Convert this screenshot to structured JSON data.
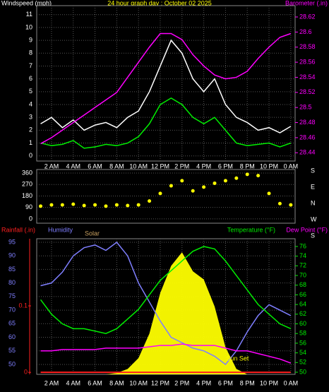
{
  "chart_data": [
    {
      "type": "line",
      "title": "24 hour graph day : October 02 2025",
      "ylabel": "Windspeed (mph)",
      "y2label": "Barometer (.in)",
      "x": [
        1,
        2,
        3,
        4,
        5,
        6,
        7,
        8,
        9,
        10,
        11,
        12,
        13,
        14,
        15,
        16,
        17,
        18,
        19,
        20,
        21,
        22,
        23,
        24
      ],
      "xlim": [
        0.64,
        24.4
      ],
      "xticks": [
        {
          "value": 2,
          "label": "2 AM"
        },
        {
          "value": 4,
          "label": "4 AM"
        },
        {
          "value": 6,
          "label": "6 AM"
        },
        {
          "value": 8,
          "label": "8 AM"
        },
        {
          "value": 10,
          "label": "10 AM"
        },
        {
          "value": 12,
          "label": "12 PM"
        },
        {
          "value": 14,
          "label": "2 PM"
        },
        {
          "value": 16,
          "label": "4 PM"
        },
        {
          "value": 18,
          "label": "6 PM"
        },
        {
          "value": 20,
          "label": "8 PM"
        },
        {
          "value": 22,
          "label": "10 PM"
        },
        {
          "value": 24,
          "label": "0 AM"
        }
      ],
      "ylim": [
        -0.4,
        11.7
      ],
      "yticks": [
        0,
        1,
        2,
        3,
        4,
        5,
        6,
        7,
        8,
        9,
        10,
        11
      ],
      "y2lim": [
        28.429,
        28.635
      ],
      "y2ticks": [
        28.44,
        28.46,
        28.48,
        28.5,
        28.52,
        28.54,
        28.56,
        28.58,
        28.6,
        28.62
      ],
      "grid": true,
      "series": [
        {
          "color": "#ffffff",
          "values": [
            2.5,
            3,
            2.2,
            2.8,
            2,
            2.4,
            2.6,
            2.2,
            3,
            3.5,
            5,
            7,
            9,
            8,
            6,
            5,
            6,
            4,
            3,
            2.6,
            2,
            2.2,
            1.8,
            2.3
          ]
        },
        {
          "color": "#00ee00",
          "values": [
            1,
            0.8,
            0.9,
            1.2,
            0.6,
            0.7,
            0.9,
            0.8,
            1,
            1.5,
            2.5,
            4,
            4.5,
            4,
            3,
            2.5,
            3,
            2,
            1,
            0.8,
            0.9,
            1,
            0.7,
            1
          ]
        },
        {
          "color": "#ff00ff",
          "axis": "y2",
          "values": [
            28.452,
            28.46,
            28.47,
            28.48,
            28.49,
            28.5,
            28.51,
            28.52,
            28.54,
            28.56,
            28.58,
            28.598,
            28.598,
            28.59,
            28.57,
            28.555,
            28.543,
            28.538,
            28.54,
            28.548,
            28.565,
            28.58,
            28.593,
            28.598
          ]
        }
      ]
    },
    {
      "type": "scatter",
      "x": [
        1,
        2,
        3,
        4,
        5,
        6,
        7,
        8,
        9,
        10,
        11,
        12,
        13,
        14,
        15,
        16,
        17,
        18,
        19,
        20,
        21,
        22,
        23,
        24
      ],
      "values": [
        100,
        110,
        110,
        115,
        105,
        110,
        100,
        110,
        105,
        110,
        140,
        200,
        260,
        300,
        220,
        250,
        280,
        300,
        320,
        350,
        340,
        200,
        120,
        110
      ],
      "color": "#ffff00",
      "xlim": [
        0.64,
        24.4
      ],
      "ylim": [
        -34,
        388
      ],
      "yticks": [
        0,
        90,
        180,
        270,
        360
      ],
      "direction_labels": [
        "S",
        "E",
        "N",
        "W",
        "S"
      ],
      "grid": true
    },
    {
      "type": "line",
      "x": [
        1,
        2,
        3,
        4,
        5,
        6,
        7,
        8,
        9,
        10,
        11,
        12,
        13,
        14,
        15,
        16,
        17,
        18,
        19,
        20,
        21,
        22,
        23,
        24
      ],
      "xlim": [
        0.64,
        24.4
      ],
      "xticks": [
        {
          "value": 2,
          "label": "2 AM"
        },
        {
          "value": 4,
          "label": "4 AM"
        },
        {
          "value": 6,
          "label": "6 AM"
        },
        {
          "value": 8,
          "label": "8 AM"
        },
        {
          "value": 10,
          "label": "10 AM"
        },
        {
          "value": 12,
          "label": "12 PM"
        },
        {
          "value": 14,
          "label": "2 PM"
        },
        {
          "value": 16,
          "label": "4 PM"
        },
        {
          "value": 18,
          "label": "6 PM"
        },
        {
          "value": 20,
          "label": "8 PM"
        },
        {
          "value": 22,
          "label": "10 PM"
        },
        {
          "value": 24,
          "label": "0 AM"
        }
      ],
      "ylim": [
        46.35,
        96.3
      ],
      "yticks": [
        50,
        55,
        60,
        65,
        70,
        75,
        80,
        85,
        90,
        95
      ],
      "y2lim": [
        49.56,
        77.6
      ],
      "y2ticks": [
        50,
        52,
        54,
        56,
        58,
        60,
        62,
        64,
        66,
        68,
        70,
        72,
        74,
        76
      ],
      "y3lim": [
        -0.003,
        0.201
      ],
      "y3ticks": [
        0,
        0.1
      ],
      "y4lim": [
        0,
        500
      ],
      "grid": true,
      "annotation": "Sun Set",
      "annotation_x": 19.1,
      "series": [
        {
          "name": "Rainfall (.in)",
          "color": "#ff2020",
          "axis": "y3",
          "values": [
            0,
            0,
            0,
            0,
            0,
            0,
            0,
            0,
            0,
            0,
            0,
            0,
            0,
            0,
            0,
            0,
            0,
            0,
            0,
            0,
            0,
            0,
            0,
            0
          ]
        },
        {
          "name": "Humidity",
          "color": "#7f7fff",
          "values": [
            79,
            80,
            84,
            90,
            93,
            94,
            92,
            95,
            90,
            80,
            73,
            66,
            60,
            58,
            56,
            55,
            53,
            50,
            55,
            62,
            68,
            72,
            70,
            68
          ]
        },
        {
          "name": "Solar",
          "color": "#ffff00",
          "axis": "y4",
          "values": [
            0,
            0,
            0,
            0,
            0,
            0,
            0,
            5,
            20,
            60,
            150,
            300,
            400,
            450,
            380,
            350,
            250,
            100,
            20,
            0,
            0,
            0,
            0,
            0
          ]
        },
        {
          "name": "Temperature (°F)",
          "color": "#00ee00",
          "axis": "y2",
          "values": [
            65,
            62,
            60,
            59,
            59,
            58.5,
            58,
            59,
            61,
            63,
            66,
            69,
            71,
            73,
            75,
            76,
            75.5,
            73,
            70,
            67,
            64,
            62,
            60,
            59
          ]
        },
        {
          "name": "Dew Point (°F)",
          "color": "#ff00ff",
          "values": [
            55,
            55,
            55.5,
            55.5,
            55.5,
            55.5,
            56,
            56,
            56,
            56,
            56.5,
            57,
            57,
            57.5,
            57,
            57,
            57,
            56,
            55,
            55,
            54,
            53,
            52,
            50.5
          ]
        }
      ]
    }
  ]
}
